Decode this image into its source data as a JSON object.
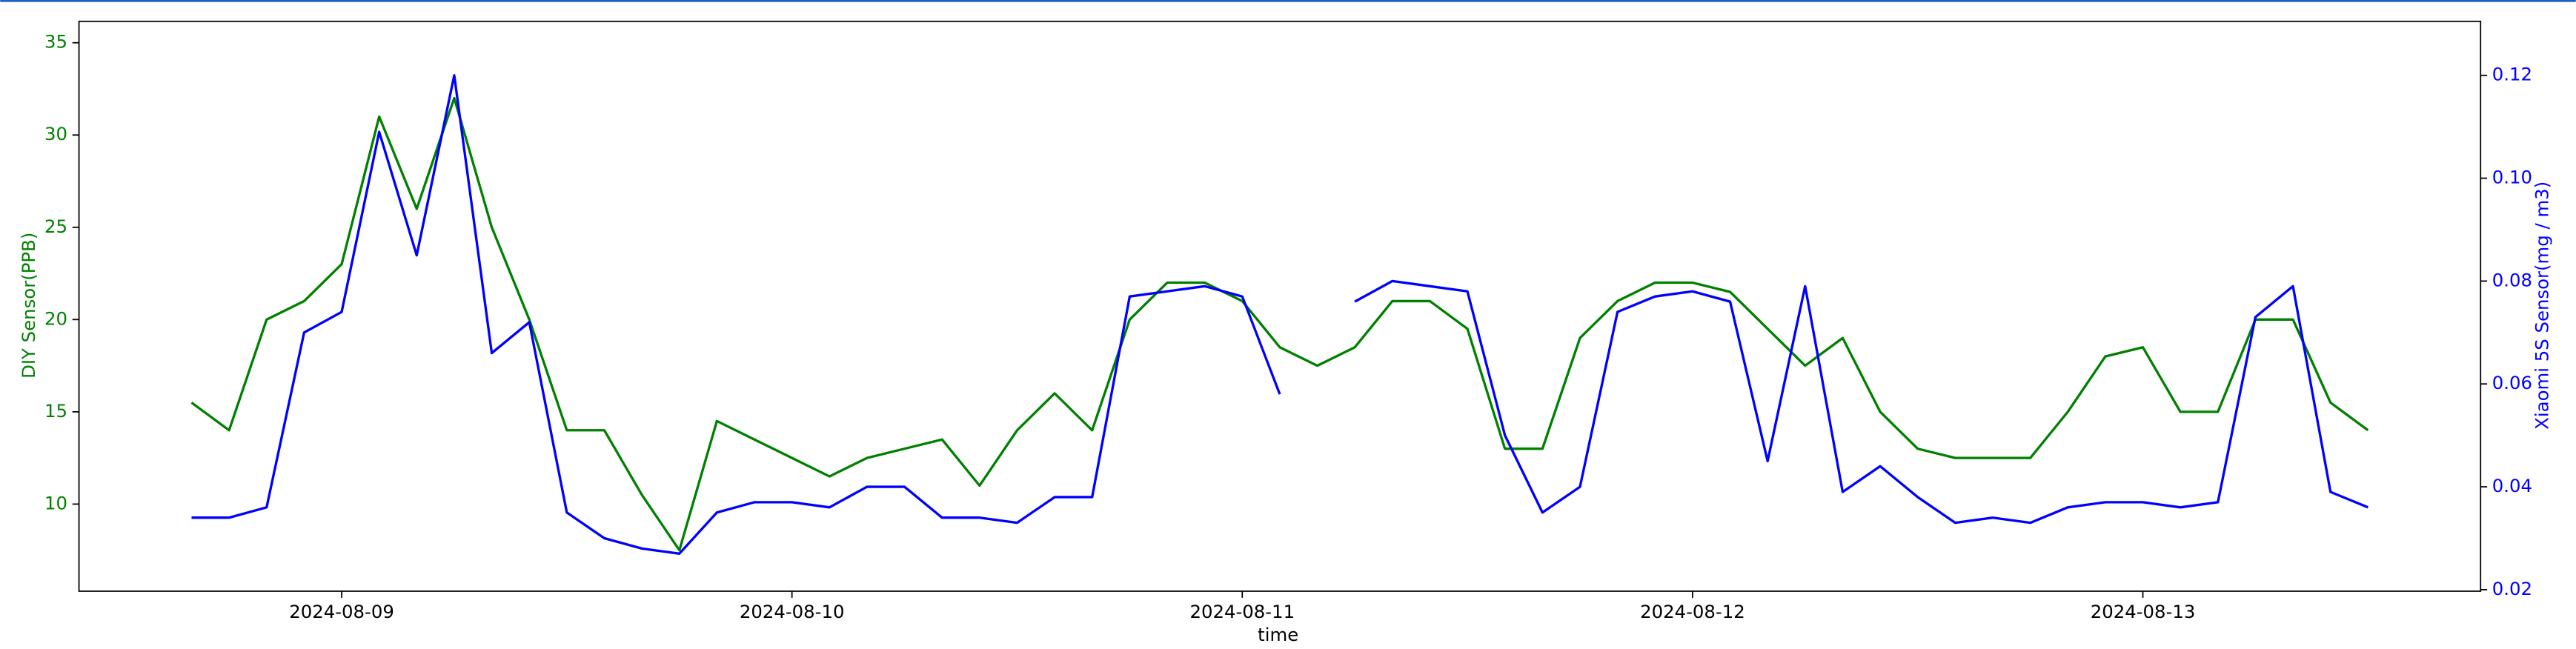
{
  "chart_data": {
    "type": "line",
    "x_label": "time",
    "y_label": "DIY Sensor(PPB)",
    "y2_label": "Xiaomi 5S Sensor(mg / m3)",
    "x": [
      "2024-08-08 16:00",
      "2024-08-08 18:00",
      "2024-08-08 20:00",
      "2024-08-08 22:00",
      "2024-08-09 00:00",
      "2024-08-09 02:00",
      "2024-08-09 04:00",
      "2024-08-09 06:00",
      "2024-08-09 08:00",
      "2024-08-09 10:00",
      "2024-08-09 12:00",
      "2024-08-09 14:00",
      "2024-08-09 16:00",
      "2024-08-09 18:00",
      "2024-08-09 20:00",
      "2024-08-09 22:00",
      "2024-08-10 00:00",
      "2024-08-10 02:00",
      "2024-08-10 04:00",
      "2024-08-10 06:00",
      "2024-08-10 08:00",
      "2024-08-10 10:00",
      "2024-08-10 12:00",
      "2024-08-10 14:00",
      "2024-08-10 16:00",
      "2024-08-10 18:00",
      "2024-08-10 20:00",
      "2024-08-10 22:00",
      "2024-08-11 00:00",
      "2024-08-11 02:00",
      "2024-08-11 04:00",
      "2024-08-11 06:00",
      "2024-08-11 08:00",
      "2024-08-11 10:00",
      "2024-08-11 12:00",
      "2024-08-11 14:00",
      "2024-08-11 16:00",
      "2024-08-11 18:00",
      "2024-08-11 20:00",
      "2024-08-11 22:00",
      "2024-08-12 00:00",
      "2024-08-12 02:00",
      "2024-08-12 04:00",
      "2024-08-12 06:00",
      "2024-08-12 08:00",
      "2024-08-12 10:00",
      "2024-08-12 12:00",
      "2024-08-12 14:00",
      "2024-08-12 16:00",
      "2024-08-12 18:00",
      "2024-08-12 20:00",
      "2024-08-12 22:00",
      "2024-08-13 00:00",
      "2024-08-13 02:00",
      "2024-08-13 04:00",
      "2024-08-13 06:00",
      "2024-08-13 08:00",
      "2024-08-13 10:00",
      "2024-08-13 12:00"
    ],
    "series": [
      {
        "name": "DIY Sensor(PPB)",
        "color": "green",
        "axis": "y",
        "values": [
          15.5,
          14,
          20,
          21,
          23,
          31,
          26,
          32,
          25,
          20,
          14,
          14,
          10.5,
          7.5,
          14.5,
          13.5,
          12.5,
          11.5,
          12.5,
          13,
          13.5,
          11,
          14,
          16,
          14,
          20,
          22,
          22,
          21,
          18.5,
          17.5,
          18.5,
          21,
          21,
          19.5,
          13,
          13,
          19,
          21,
          22,
          22,
          21.5,
          19.5,
          17.5,
          19,
          15,
          13,
          12.5,
          12.5,
          12.5,
          15,
          18,
          18.5,
          15,
          15,
          20,
          20,
          15.5,
          14
        ]
      },
      {
        "name": "Xiaomi 5S Sensor(mg / m3)",
        "color": "blue",
        "axis": "y2",
        "values": [
          0.034,
          0.034,
          0.036,
          0.07,
          0.074,
          0.109,
          0.085,
          0.12,
          0.066,
          0.072,
          0.035,
          0.03,
          0.028,
          0.027,
          0.035,
          0.037,
          0.037,
          0.036,
          0.04,
          0.04,
          0.034,
          0.034,
          0.033,
          0.038,
          0.038,
          0.077,
          0.078,
          0.079,
          0.077,
          0.058,
          null,
          0.076,
          0.08,
          0.079,
          0.078,
          0.05,
          0.035,
          0.04,
          0.074,
          0.077,
          0.078,
          0.076,
          0.045,
          0.079,
          0.039,
          0.044,
          0.038,
          0.033,
          0.034,
          0.033,
          0.036,
          0.037,
          0.037,
          0.036,
          0.037,
          0.073,
          0.079,
          0.039,
          0.036
        ]
      }
    ],
    "xlim": [
      "2024-08-08 10:00",
      "2024-08-13 18:00"
    ],
    "xticks": [
      "2024-08-09",
      "2024-08-10",
      "2024-08-11",
      "2024-08-12",
      "2024-08-13"
    ],
    "ylim": [
      5.28,
      36.16
    ],
    "yticks": [
      10,
      15,
      20,
      25,
      30,
      35
    ],
    "y2lim": [
      0.0197,
      0.1305
    ],
    "y2ticks": [
      0.02,
      0.04,
      0.06,
      0.08,
      {
        "value": 0.1,
        "label": "0.10"
      },
      0.12
    ]
  }
}
